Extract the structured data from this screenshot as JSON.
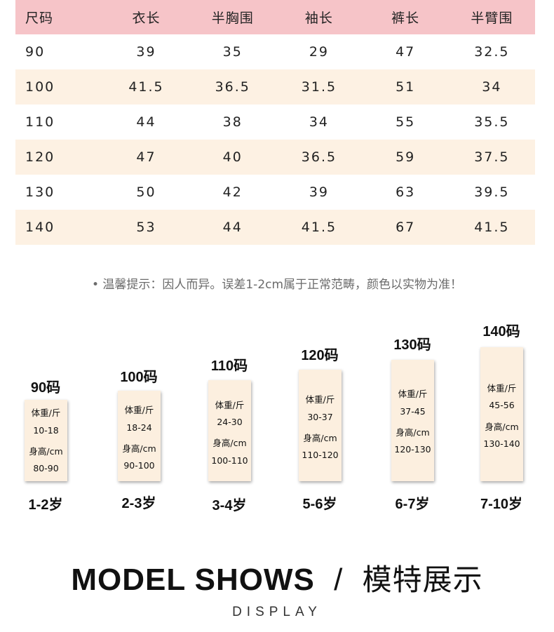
{
  "table": {
    "headers": [
      "尺码",
      "衣长",
      "半胸围",
      "袖长",
      "裤长",
      "半臂围"
    ],
    "rows": [
      [
        "90",
        "39",
        "35",
        "29",
        "47",
        "32.5"
      ],
      [
        "100",
        "41.5",
        "36.5",
        "31.5",
        "51",
        "34"
      ],
      [
        "110",
        "44",
        "38",
        "34",
        "55",
        "35.5"
      ],
      [
        "120",
        "47",
        "40",
        "36.5",
        "59",
        "37.5"
      ],
      [
        "130",
        "50",
        "42",
        "39",
        "63",
        "39.5"
      ],
      [
        "140",
        "53",
        "44",
        "41.5",
        "67",
        "41.5"
      ]
    ]
  },
  "tip": "• 温馨提示：因人而异。误差1-2cm属于正常范畴，颜色以实物为准！",
  "cards": [
    {
      "code": "90码",
      "weight_label": "体重/斤",
      "weight": "10-18",
      "height_label": "身高/cm",
      "height": "80-90",
      "age": "1-2岁"
    },
    {
      "code": "100码",
      "weight_label": "体重/斤",
      "weight": "18-24",
      "height_label": "身高/cm",
      "height": "90-100",
      "age": "2-3岁"
    },
    {
      "code": "110码",
      "weight_label": "体重/斤",
      "weight": "24-30",
      "height_label": "身高/cm",
      "height": "100-110",
      "age": "3-4岁"
    },
    {
      "code": "120码",
      "weight_label": "体重/斤",
      "weight": "30-37",
      "height_label": "身高/cm",
      "height": "110-120",
      "age": "5-6岁"
    },
    {
      "code": "130码",
      "weight_label": "体重/斤",
      "weight": "37-45",
      "height_label": "身高/cm",
      "height": "120-130",
      "age": "6-7岁"
    },
    {
      "code": "140码",
      "weight_label": "体重/斤",
      "weight": "45-56",
      "height_label": "身高/cm",
      "height": "130-140",
      "age": "7-10岁"
    }
  ],
  "model": {
    "title_en": "MODEL SHOWS",
    "separator": "/",
    "title_cn": "模特展示",
    "subtitle": "DISPLAY"
  },
  "colors": {
    "header_bg": "#f6c4c8",
    "alt_row_bg": "#fdf1e3",
    "card_bg": "#fcefdf"
  }
}
